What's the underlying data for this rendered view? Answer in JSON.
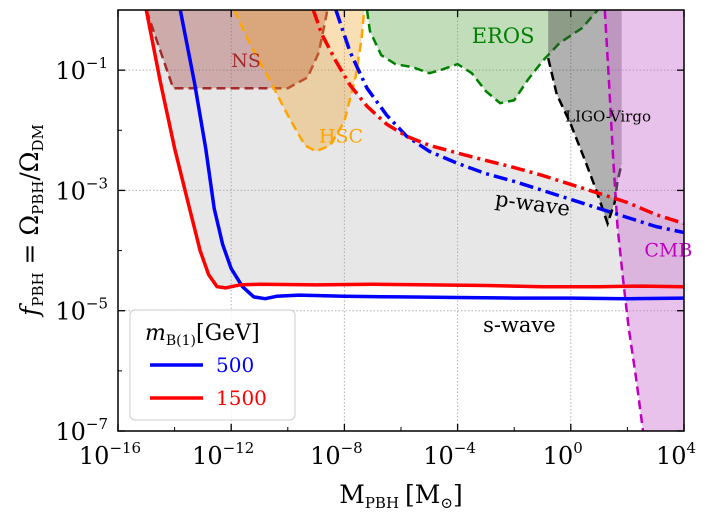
{
  "chart_data": {
    "type": "line",
    "title": "",
    "x_scale": "log10",
    "y_scale": "log10",
    "xlim_log10": [
      -16,
      4
    ],
    "ylim_log10": [
      -7,
      0
    ],
    "xlabel": {
      "main": "M",
      "sub": "PBH",
      "unit": "[M",
      "unit_sub": "⊙",
      "unit_end": "]"
    },
    "ylabel": {
      "f": "f",
      "f_sub": "PBH",
      "eq": " = Ω",
      "omega1_sub": "PBH",
      "slash": "/Ω",
      "omega2_sub": "DM"
    },
    "x_ticks": [
      {
        "log10": -16,
        "base": "10",
        "exp": "−16"
      },
      {
        "log10": -12,
        "base": "10",
        "exp": "−12"
      },
      {
        "log10": -8,
        "base": "10",
        "exp": "−8"
      },
      {
        "log10": -4,
        "base": "10",
        "exp": "−4"
      },
      {
        "log10": 0,
        "base": "10",
        "exp": "0"
      },
      {
        "log10": 4,
        "base": "10",
        "exp": "4"
      }
    ],
    "y_ticks": [
      {
        "log10": -7,
        "base": "10",
        "exp": "−7"
      },
      {
        "log10": -5,
        "base": "10",
        "exp": "−5"
      },
      {
        "log10": -3,
        "base": "10",
        "exp": "−3"
      },
      {
        "log10": -1,
        "base": "10",
        "exp": "−1"
      }
    ],
    "constraints": [
      {
        "name": "NS",
        "color": "#a52a2a",
        "fill": "rgba(160,60,60,0.35)",
        "points": [
          [
            -15,
            0
          ],
          [
            -14.05,
            -1.3
          ],
          [
            -13.5,
            -1.3
          ],
          [
            -12.5,
            -1.3
          ],
          [
            -11.5,
            -1.3
          ],
          [
            -10,
            -1.3
          ],
          [
            -9.3,
            -1.12
          ],
          [
            -8.9,
            -0.7
          ],
          [
            -8.6,
            0
          ]
        ]
      },
      {
        "name": "HSC",
        "color": "#ffa500",
        "fill": "rgba(240,160,40,0.35)",
        "points": [
          [
            -11.9,
            0
          ],
          [
            -11.3,
            -0.6
          ],
          [
            -10.6,
            -1.2
          ],
          [
            -10.0,
            -1.75
          ],
          [
            -9.4,
            -2.25
          ],
          [
            -9.0,
            -2.35
          ],
          [
            -8.5,
            -2.25
          ],
          [
            -8.0,
            -1.85
          ],
          [
            -7.6,
            -1.1
          ],
          [
            -7.4,
            -0.5
          ],
          [
            -7.3,
            0
          ]
        ]
      },
      {
        "name": "EROS",
        "color": "#008000",
        "fill": "rgba(100,170,80,0.40)",
        "points": [
          [
            -7.2,
            0
          ],
          [
            -7.1,
            -0.35
          ],
          [
            -6.7,
            -0.75
          ],
          [
            -6.2,
            -0.9
          ],
          [
            -5.6,
            -0.95
          ],
          [
            -5.0,
            -1.05
          ],
          [
            -4.6,
            -1.0
          ],
          [
            -4.0,
            -0.9
          ],
          [
            -3.5,
            -1.05
          ],
          [
            -3.0,
            -1.35
          ],
          [
            -2.5,
            -1.55
          ],
          [
            -2.0,
            -1.5
          ],
          [
            -1.5,
            -1.15
          ],
          [
            -1.0,
            -0.85
          ],
          [
            -0.4,
            -0.55
          ],
          [
            0.4,
            -0.3
          ],
          [
            0.95,
            0
          ]
        ]
      },
      {
        "name": "LIGO-Virgo",
        "color": "#000000",
        "fill": "rgba(60,60,60,0.40)",
        "points": [
          [
            -0.8,
            -0.8
          ],
          [
            -0.5,
            -1.4
          ],
          [
            0,
            -1.9
          ],
          [
            0.5,
            -2.5
          ],
          [
            0.9,
            -3.0
          ],
          [
            1.3,
            -3.55
          ],
          [
            1.55,
            -3.2
          ],
          [
            1.65,
            -2.85
          ],
          [
            1.8,
            -2.55
          ]
        ]
      },
      {
        "name": "CMB",
        "color": "#c000c0",
        "fill": "rgba(205,120,210,0.45)",
        "points": [
          [
            1.2,
            0
          ],
          [
            1.35,
            -1.2
          ],
          [
            1.5,
            -2.5
          ],
          [
            1.65,
            -3.6
          ],
          [
            1.85,
            -4.5
          ],
          [
            2.05,
            -5.3
          ],
          [
            2.3,
            -6.1
          ],
          [
            2.55,
            -7
          ]
        ]
      }
    ],
    "series": [
      {
        "name": "p-wave, m_B(1) = 500 GeV",
        "color": "#0000ff",
        "dash": "dashdot",
        "points": [
          [
            -8.3,
            0
          ],
          [
            -7.8,
            -0.7
          ],
          [
            -7.2,
            -1.3
          ],
          [
            -6.5,
            -1.75
          ],
          [
            -5.8,
            -2.1
          ],
          [
            -5.0,
            -2.35
          ],
          [
            -4.0,
            -2.55
          ],
          [
            -3.0,
            -2.72
          ],
          [
            -2.0,
            -2.85
          ],
          [
            -1.0,
            -3.0
          ],
          [
            0.0,
            -3.15
          ],
          [
            1.0,
            -3.3
          ],
          [
            2.0,
            -3.45
          ],
          [
            3.0,
            -3.6
          ],
          [
            4.0,
            -3.7
          ]
        ]
      },
      {
        "name": "p-wave, m_B(1) = 1500 GeV",
        "color": "#ff0000",
        "dash": "dashdot",
        "points": [
          [
            -9.1,
            0
          ],
          [
            -8.8,
            -0.4
          ],
          [
            -8.3,
            -0.85
          ],
          [
            -7.8,
            -1.25
          ],
          [
            -7.2,
            -1.6
          ],
          [
            -6.5,
            -1.9
          ],
          [
            -5.8,
            -2.1
          ],
          [
            -5.0,
            -2.25
          ],
          [
            -4.0,
            -2.38
          ],
          [
            -3.0,
            -2.5
          ],
          [
            -2.0,
            -2.62
          ],
          [
            -1.0,
            -2.75
          ],
          [
            0.0,
            -2.9
          ],
          [
            1.0,
            -3.05
          ],
          [
            2.0,
            -3.2
          ],
          [
            3.0,
            -3.4
          ],
          [
            4.0,
            -3.55
          ]
        ]
      },
      {
        "name": "s-wave, m_B(1) = 500 GeV",
        "color": "#0000ff",
        "dash": "solid",
        "points": [
          [
            -13.8,
            0
          ],
          [
            -13.3,
            -1.2
          ],
          [
            -12.9,
            -2.3
          ],
          [
            -12.6,
            -3.3
          ],
          [
            -12.3,
            -3.9
          ],
          [
            -12.0,
            -4.3
          ],
          [
            -11.6,
            -4.6
          ],
          [
            -11.2,
            -4.77
          ],
          [
            -10.8,
            -4.8
          ],
          [
            -10.4,
            -4.76
          ],
          [
            -9.6,
            -4.74
          ],
          [
            -8.0,
            -4.76
          ],
          [
            -6.0,
            -4.77
          ],
          [
            -4.0,
            -4.78
          ],
          [
            -2.0,
            -4.79
          ],
          [
            0.0,
            -4.79
          ],
          [
            2.0,
            -4.8
          ],
          [
            4.0,
            -4.79
          ]
        ]
      },
      {
        "name": "s-wave, m_B(1) = 1500 GeV",
        "color": "#ff0000",
        "dash": "solid",
        "points": [
          [
            -15.0,
            0
          ],
          [
            -14.5,
            -1.2
          ],
          [
            -14.0,
            -2.3
          ],
          [
            -13.5,
            -3.25
          ],
          [
            -13.1,
            -4.0
          ],
          [
            -12.8,
            -4.4
          ],
          [
            -12.5,
            -4.6
          ],
          [
            -12.2,
            -4.62
          ],
          [
            -11.7,
            -4.57
          ],
          [
            -11.0,
            -4.56
          ],
          [
            -9.0,
            -4.57
          ],
          [
            -7.0,
            -4.56
          ],
          [
            -5.0,
            -4.57
          ],
          [
            -3.0,
            -4.58
          ],
          [
            -1.0,
            -4.6
          ],
          [
            1.0,
            -4.6
          ],
          [
            2.5,
            -4.59
          ],
          [
            4.0,
            -4.6
          ]
        ]
      }
    ],
    "excluded_region": {
      "color": "rgba(170,170,170,0.28)",
      "boundary": "red p-wave curve then red s-wave curve"
    },
    "annotations": [
      {
        "text": "NS",
        "color": "#a52a2a",
        "at": [
          -12,
          -0.95
        ]
      },
      {
        "text": "HSC",
        "color": "#ffa500",
        "at": [
          -8.9,
          -2.2
        ]
      },
      {
        "text": "EROS",
        "color": "#008000",
        "at": [
          -3.5,
          -0.55
        ]
      },
      {
        "text": "LIGO-Virgo",
        "color": "#000000",
        "at": [
          -0.2,
          -1.85
        ]
      },
      {
        "text": "CMB",
        "color": "#c000c0",
        "at": [
          2.6,
          -4.1
        ]
      },
      {
        "text": "p-wave",
        "color": "#000000",
        "at": [
          -2.7,
          -3.25
        ]
      },
      {
        "text": "s-wave",
        "color": "#000000",
        "at": [
          -3.1,
          -5.35
        ]
      }
    ],
    "legend": {
      "placement": "bottom-left",
      "title": {
        "m": "m",
        "sub": "B(1)",
        "unit": "[GeV]"
      },
      "entries": [
        {
          "label": "500",
          "color": "#0000ff"
        },
        {
          "label": "1500",
          "color": "#ff0000"
        }
      ]
    },
    "grid": true
  }
}
